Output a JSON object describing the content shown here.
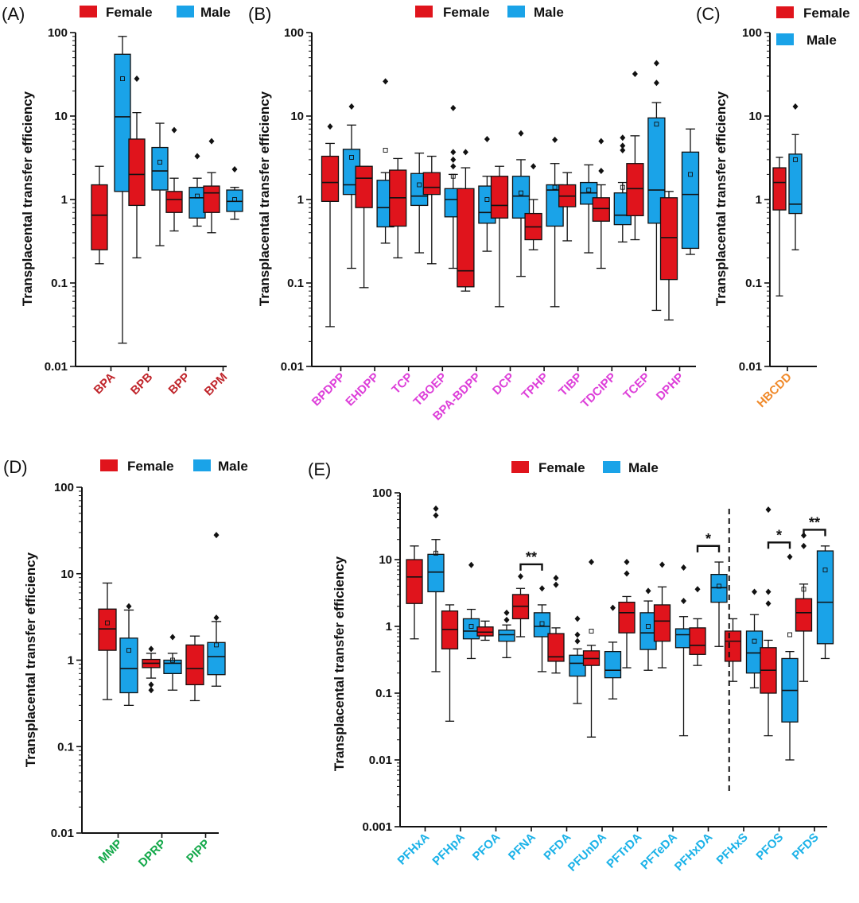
{
  "colors": {
    "female": "#e0141c",
    "male": "#1aa3e8",
    "axis": "#111111",
    "bisphenols": "#c0262c",
    "opfrs": "#dd3fd9",
    "hbcdd": "#f08a2b",
    "phthalates": "#14a84a",
    "pfas": "#1bb2e8"
  },
  "legend": {
    "female": "Female",
    "male": "Male"
  },
  "chart_data": [
    {
      "id": "A",
      "panel_label": "(A)",
      "type": "box",
      "yscale": "log",
      "ylim": [
        0.01,
        100
      ],
      "yticks": [
        "0.01",
        "0.1",
        "1",
        "10",
        "100"
      ],
      "ylabel": "Transplacental transfer efficiency",
      "label_color": "bisphenols",
      "categories": [
        "BPA",
        "BPB",
        "BPP",
        "BPM"
      ],
      "boxes": [
        {
          "category": "BPA",
          "group": "female",
          "min": 0.17,
          "q1": 0.25,
          "median": 0.65,
          "q3": 1.5,
          "max": 2.5,
          "mean": null,
          "outliers": []
        },
        {
          "category": "BPA",
          "group": "male",
          "min": 0.019,
          "q1": 1.25,
          "median": 9.8,
          "q3": 55,
          "max": 90,
          "mean": 28,
          "outliers": []
        },
        {
          "category": "BPB",
          "group": "female",
          "min": 0.2,
          "q1": 0.85,
          "median": 2.0,
          "q3": 5.3,
          "max": 11,
          "mean": null,
          "outliers": [
            28
          ]
        },
        {
          "category": "BPB",
          "group": "male",
          "min": 0.28,
          "q1": 1.3,
          "median": 2.2,
          "q3": 4.2,
          "max": 8.2,
          "mean": 2.8,
          "outliers": []
        },
        {
          "category": "BPP",
          "group": "female",
          "min": 0.42,
          "q1": 0.7,
          "median": 1.0,
          "q3": 1.25,
          "max": 1.8,
          "mean": null,
          "outliers": [
            6.8
          ]
        },
        {
          "category": "BPP",
          "group": "male",
          "min": 0.48,
          "q1": 0.6,
          "median": 1.05,
          "q3": 1.4,
          "max": 1.8,
          "mean": 1.1,
          "outliers": [
            3.3
          ]
        },
        {
          "category": "BPM",
          "group": "female",
          "min": 0.4,
          "q1": 0.7,
          "median": 1.2,
          "q3": 1.45,
          "max": 2.1,
          "mean": null,
          "outliers": [
            5.0
          ]
        },
        {
          "category": "BPM",
          "group": "male",
          "min": 0.58,
          "q1": 0.72,
          "median": 0.95,
          "q3": 1.3,
          "max": 1.4,
          "mean": 1.0,
          "outliers": [
            2.3
          ]
        }
      ]
    },
    {
      "id": "B",
      "panel_label": "(B)",
      "type": "box",
      "yscale": "log",
      "ylim": [
        0.01,
        100
      ],
      "yticks": [
        "0.01",
        "0.1",
        "1",
        "10",
        "100"
      ],
      "ylabel": "Transplacental transfer efficiency",
      "label_color": "opfrs",
      "categories": [
        "BPDPP",
        "EHDPP",
        "TCP",
        "TBOEP",
        "BPA-BDPP",
        "DCP",
        "TPHP",
        "TIBP",
        "TDCIPP",
        "TCEP",
        "DPHP"
      ],
      "boxes": [
        {
          "category": "BPDPP",
          "group": "female",
          "min": 0.03,
          "q1": 0.95,
          "median": 1.6,
          "q3": 3.3,
          "max": 4.7,
          "mean": null,
          "outliers": [
            7.5
          ]
        },
        {
          "category": "BPDPP",
          "group": "male",
          "min": 0.15,
          "q1": 1.15,
          "median": 1.5,
          "q3": 4.0,
          "max": 7.8,
          "mean": 3.2,
          "outliers": [
            13
          ]
        },
        {
          "category": "EHDPP",
          "group": "female",
          "min": 0.088,
          "q1": 0.8,
          "median": 1.8,
          "q3": 2.5,
          "max": 2.5,
          "mean": null,
          "outliers": []
        },
        {
          "category": "EHDPP",
          "group": "male",
          "min": 0.3,
          "q1": 0.47,
          "median": 0.8,
          "q3": 1.7,
          "max": 2.1,
          "mean": 3.9,
          "outliers": [
            26
          ]
        },
        {
          "category": "TCP",
          "group": "female",
          "min": 0.2,
          "q1": 0.48,
          "median": 1.05,
          "q3": 2.25,
          "max": 3.1,
          "mean": null,
          "outliers": []
        },
        {
          "category": "TCP",
          "group": "male",
          "min": 0.23,
          "q1": 0.85,
          "median": 1.1,
          "q3": 2.05,
          "max": 3.6,
          "mean": 1.5,
          "outliers": []
        },
        {
          "category": "TBOEP",
          "group": "female",
          "min": 0.17,
          "q1": 1.15,
          "median": 1.4,
          "q3": 2.1,
          "max": 3.3,
          "mean": null,
          "outliers": []
        },
        {
          "category": "TBOEP",
          "group": "male",
          "min": 0.15,
          "q1": 0.62,
          "median": 1.0,
          "q3": 1.35,
          "max": 2.0,
          "mean": 1.9,
          "outliers": [
            2.5,
            3.0,
            3.7,
            12.5
          ]
        },
        {
          "category": "BPA-BDPP",
          "group": "female",
          "min": 0.08,
          "q1": 0.09,
          "median": 0.14,
          "q3": 1.35,
          "max": 2.4,
          "mean": null,
          "outliers": [
            3.7
          ]
        },
        {
          "category": "BPA-BDPP",
          "group": "male",
          "min": 0.24,
          "q1": 0.52,
          "median": 0.7,
          "q3": 1.45,
          "max": 1.9,
          "mean": 1.0,
          "outliers": [
            5.3
          ]
        },
        {
          "category": "DCP",
          "group": "female",
          "min": 0.052,
          "q1": 0.6,
          "median": 0.85,
          "q3": 1.9,
          "max": 2.5,
          "mean": null,
          "outliers": []
        },
        {
          "category": "DCP",
          "group": "male",
          "min": 0.12,
          "q1": 0.6,
          "median": 1.1,
          "q3": 1.9,
          "max": 3.0,
          "mean": 1.2,
          "outliers": [
            6.2
          ]
        },
        {
          "category": "TPHP",
          "group": "female",
          "min": 0.25,
          "q1": 0.33,
          "median": 0.47,
          "q3": 0.68,
          "max": 1.0,
          "mean": null,
          "outliers": [
            2.5
          ]
        },
        {
          "category": "TPHP",
          "group": "male",
          "min": 0.052,
          "q1": 0.48,
          "median": 1.3,
          "q3": 1.5,
          "max": 2.7,
          "mean": 1.4,
          "outliers": [
            5.2
          ]
        },
        {
          "category": "TIBP",
          "group": "female",
          "min": 0.32,
          "q1": 0.82,
          "median": 1.1,
          "q3": 1.5,
          "max": 2.1,
          "mean": null,
          "outliers": []
        },
        {
          "category": "TIBP",
          "group": "male",
          "min": 0.23,
          "q1": 0.88,
          "median": 1.2,
          "q3": 1.6,
          "max": 2.6,
          "mean": 1.3,
          "outliers": []
        },
        {
          "category": "TDCIPP",
          "group": "female",
          "min": 0.15,
          "q1": 0.55,
          "median": 0.78,
          "q3": 1.05,
          "max": 1.5,
          "mean": null,
          "outliers": [
            2.2,
            5.0
          ]
        },
        {
          "category": "TDCIPP",
          "group": "male",
          "min": 0.31,
          "q1": 0.5,
          "median": 0.65,
          "q3": 1.2,
          "max": 1.6,
          "mean": 1.4,
          "outliers": [
            3.9,
            4.4,
            5.5
          ]
        },
        {
          "category": "TCEP",
          "group": "female",
          "min": 0.33,
          "q1": 0.64,
          "median": 1.35,
          "q3": 2.7,
          "max": 5.8,
          "mean": null,
          "outliers": [
            32
          ]
        },
        {
          "category": "TCEP",
          "group": "male",
          "min": 0.047,
          "q1": 0.52,
          "median": 1.3,
          "q3": 9.5,
          "max": 14.5,
          "mean": 8.0,
          "outliers": [
            25,
            43
          ]
        },
        {
          "category": "DPHP",
          "group": "female",
          "min": 0.036,
          "q1": 0.11,
          "median": 0.35,
          "q3": 1.05,
          "max": 1.25,
          "mean": null,
          "outliers": []
        },
        {
          "category": "DPHP",
          "group": "male",
          "min": 0.22,
          "q1": 0.26,
          "median": 1.15,
          "q3": 3.7,
          "max": 7.0,
          "mean": 2.0,
          "outliers": []
        }
      ]
    },
    {
      "id": "C",
      "panel_label": "(C)",
      "type": "box",
      "yscale": "log",
      "ylim": [
        0.01,
        100
      ],
      "yticks": [
        "0.01",
        "0.1",
        "1",
        "10",
        "100"
      ],
      "ylabel": "Transplacental transfer efficiency",
      "label_color": "hbcdd",
      "categories": [
        "HBCDD"
      ],
      "boxes": [
        {
          "category": "HBCDD",
          "group": "female",
          "min": 0.07,
          "q1": 0.75,
          "median": 1.6,
          "q3": 2.4,
          "max": 3.2,
          "mean": null,
          "outliers": []
        },
        {
          "category": "HBCDD",
          "group": "male",
          "min": 0.25,
          "q1": 0.68,
          "median": 0.88,
          "q3": 3.5,
          "max": 6.0,
          "mean": 3.0,
          "outliers": [
            13
          ]
        }
      ]
    },
    {
      "id": "D",
      "panel_label": "(D)",
      "type": "box",
      "yscale": "log",
      "ylim": [
        0.01,
        100
      ],
      "yticks": [
        "0.01",
        "0.1",
        "1",
        "10",
        "100"
      ],
      "ylabel": "Transplacental transfer efficiency",
      "label_color": "phthalates",
      "categories": [
        "MMP",
        "DPRP",
        "PIPP"
      ],
      "boxes": [
        {
          "category": "MMP",
          "group": "female",
          "min": 0.35,
          "q1": 1.3,
          "median": 2.3,
          "q3": 3.9,
          "max": 7.8,
          "mean": 2.7,
          "outliers": []
        },
        {
          "category": "MMP",
          "group": "male",
          "min": 0.3,
          "q1": 0.42,
          "median": 0.8,
          "q3": 1.8,
          "max": 3.8,
          "mean": 1.3,
          "outliers": [
            4.2
          ]
        },
        {
          "category": "DPRP",
          "group": "female",
          "min": 0.62,
          "q1": 0.82,
          "median": 0.92,
          "q3": 1.02,
          "max": 1.2,
          "mean": null,
          "outliers": [
            0.45,
            0.52,
            1.35
          ]
        },
        {
          "category": "DPRP",
          "group": "male",
          "min": 0.45,
          "q1": 0.7,
          "median": 0.92,
          "q3": 1.0,
          "max": 1.2,
          "mean": 1.0,
          "outliers": [
            1.85
          ]
        },
        {
          "category": "PIPP",
          "group": "female",
          "min": 0.34,
          "q1": 0.52,
          "median": 0.8,
          "q3": 1.5,
          "max": 1.9,
          "mean": null,
          "outliers": []
        },
        {
          "category": "PIPP",
          "group": "male",
          "min": 0.5,
          "q1": 0.68,
          "median": 1.1,
          "q3": 1.6,
          "max": 2.8,
          "mean": 1.5,
          "outliers": [
            3.1,
            28
          ]
        }
      ]
    },
    {
      "id": "E",
      "panel_label": "(E)",
      "type": "box",
      "yscale": "log",
      "ylim": [
        0.001,
        100
      ],
      "yticks": [
        "0.001",
        "0.01",
        "0.1",
        "1",
        "10",
        "100"
      ],
      "ylabel": "Transplacental transfer efficiency",
      "label_color": "pfas",
      "categories": [
        "PFHxA",
        "PFHpA",
        "PFOA",
        "PFNA",
        "PFDA",
        "PFUnDA",
        "PFTrDA",
        "PFTeDA",
        "PFHxDA",
        "PFHxS",
        "PFOS",
        "PFDS"
      ],
      "divider_after_category": "PFHxDA",
      "significance": [
        {
          "category": "PFNA",
          "label": "**"
        },
        {
          "category": "PFHxDA",
          "label": "*"
        },
        {
          "category": "PFOS",
          "label": "*"
        },
        {
          "category": "PFDS",
          "label": "**"
        }
      ],
      "boxes": [
        {
          "category": "PFHxA",
          "group": "female",
          "min": 0.65,
          "q1": 2.2,
          "median": 5.5,
          "q3": 10,
          "max": 16,
          "mean": null,
          "outliers": []
        },
        {
          "category": "PFHxA",
          "group": "male",
          "min": 0.21,
          "q1": 3.3,
          "median": 6.5,
          "q3": 12,
          "max": 20,
          "mean": 12.5,
          "outliers": [
            46,
            58
          ]
        },
        {
          "category": "PFHpA",
          "group": "female",
          "min": 0.038,
          "q1": 0.46,
          "median": 0.9,
          "q3": 1.7,
          "max": 2.1,
          "mean": null,
          "outliers": []
        },
        {
          "category": "PFHpA",
          "group": "male",
          "min": 0.33,
          "q1": 0.65,
          "median": 0.85,
          "q3": 1.3,
          "max": 1.8,
          "mean": 1.0,
          "outliers": [
            8.3
          ]
        },
        {
          "category": "PFOA",
          "group": "female",
          "min": 0.62,
          "q1": 0.72,
          "median": 0.82,
          "q3": 0.98,
          "max": 1.2,
          "mean": null,
          "outliers": []
        },
        {
          "category": "PFOA",
          "group": "male",
          "min": 0.34,
          "q1": 0.6,
          "median": 0.75,
          "q3": 0.88,
          "max": 1.05,
          "mean": null,
          "outliers": [
            1.25,
            1.6
          ]
        },
        {
          "category": "PFNA",
          "group": "female",
          "min": 0.7,
          "q1": 1.3,
          "median": 2.0,
          "q3": 3.0,
          "max": 3.7,
          "mean": null,
          "outliers": [
            5.6
          ]
        },
        {
          "category": "PFNA",
          "group": "male",
          "min": 0.21,
          "q1": 0.7,
          "median": 1.0,
          "q3": 1.6,
          "max": 2.1,
          "mean": 1.1,
          "outliers": [
            3.7
          ]
        },
        {
          "category": "PFDA",
          "group": "female",
          "min": 0.2,
          "q1": 0.3,
          "median": 0.35,
          "q3": 0.78,
          "max": 0.95,
          "mean": null,
          "outliers": [
            4.2,
            5.3
          ]
        },
        {
          "category": "PFDA",
          "group": "male",
          "min": 0.07,
          "q1": 0.18,
          "median": 0.28,
          "q3": 0.37,
          "max": 0.46,
          "mean": null,
          "outliers": [
            0.6,
            0.75,
            1.3
          ]
        },
        {
          "category": "PFUnDA",
          "group": "female",
          "min": 0.022,
          "q1": 0.26,
          "median": 0.33,
          "q3": 0.43,
          "max": 0.52,
          "mean": 0.85,
          "outliers": [
            9.2
          ]
        },
        {
          "category": "PFUnDA",
          "group": "male",
          "min": 0.082,
          "q1": 0.17,
          "median": 0.22,
          "q3": 0.42,
          "max": 0.58,
          "mean": null,
          "outliers": [
            1.9
          ]
        },
        {
          "category": "PFTrDA",
          "group": "female",
          "min": 0.24,
          "q1": 0.8,
          "median": 1.6,
          "q3": 2.3,
          "max": 2.8,
          "mean": null,
          "outliers": [
            6.2,
            9.2
          ]
        },
        {
          "category": "PFTrDA",
          "group": "male",
          "min": 0.22,
          "q1": 0.45,
          "median": 0.8,
          "q3": 1.6,
          "max": 2.4,
          "mean": 1.0,
          "outliers": [
            3.4
          ]
        },
        {
          "category": "PFTeDA",
          "group": "female",
          "min": 0.24,
          "q1": 0.6,
          "median": 1.2,
          "q3": 2.1,
          "max": 3.9,
          "mean": null,
          "outliers": [
            8.4
          ]
        },
        {
          "category": "PFTeDA",
          "group": "male",
          "min": 0.023,
          "q1": 0.48,
          "median": 0.75,
          "q3": 0.92,
          "max": 1.4,
          "mean": null,
          "outliers": [
            2.4,
            7.6
          ]
        },
        {
          "category": "PFHxDA",
          "group": "female",
          "min": 0.26,
          "q1": 0.38,
          "median": 0.52,
          "q3": 0.95,
          "max": 1.3,
          "mean": null,
          "outliers": [
            3.6
          ]
        },
        {
          "category": "PFHxDA",
          "group": "male",
          "min": 0.5,
          "q1": 2.3,
          "median": 3.8,
          "q3": 6.0,
          "max": 9.2,
          "mean": 4.0,
          "outliers": []
        },
        {
          "category": "PFHxS",
          "group": "female",
          "min": 0.15,
          "q1": 0.3,
          "median": 0.6,
          "q3": 0.85,
          "max": 1.3,
          "mean": null,
          "outliers": []
        },
        {
          "category": "PFHxS",
          "group": "male",
          "min": 0.12,
          "q1": 0.2,
          "median": 0.4,
          "q3": 0.85,
          "max": 1.5,
          "mean": 0.6,
          "outliers": [
            3.3
          ]
        },
        {
          "category": "PFOS",
          "group": "female",
          "min": 0.023,
          "q1": 0.1,
          "median": 0.22,
          "q3": 0.48,
          "max": 0.62,
          "mean": null,
          "outliers": [
            2.2,
            3.3,
            56
          ]
        },
        {
          "category": "PFOS",
          "group": "male",
          "min": 0.01,
          "q1": 0.037,
          "median": 0.11,
          "q3": 0.33,
          "max": 0.42,
          "mean": 0.75,
          "outliers": [
            11
          ]
        },
        {
          "category": "PFDS",
          "group": "female",
          "min": 0.15,
          "q1": 0.85,
          "median": 1.6,
          "q3": 2.6,
          "max": 4.3,
          "mean": 3.6,
          "outliers": [
            16,
            23
          ]
        },
        {
          "category": "PFDS",
          "group": "male",
          "min": 0.33,
          "q1": 0.55,
          "median": 2.3,
          "q3": 13.5,
          "max": 16,
          "mean": 7.0,
          "outliers": []
        }
      ]
    }
  ]
}
